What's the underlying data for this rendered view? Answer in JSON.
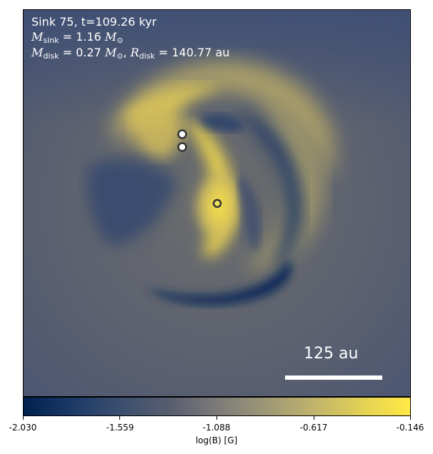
{
  "panel": {
    "title": "Sink 75, t=109.26 kyr",
    "mass_sink_label": "M",
    "mass_sink_sub": "sink",
    "mass_sink_value": " = 1.16 ",
    "mass_unit": "M",
    "sun_symbol": "⊙",
    "mass_disk_label": "M",
    "mass_disk_sub": "disk",
    "mass_disk_value": " = 0.27 ",
    "separator": ", ",
    "radius_label": "R",
    "radius_sub": "disk",
    "radius_value": " = 140.77 au"
  },
  "scalebar": {
    "label": "125 au"
  },
  "colorbar": {
    "colormap": "cividis",
    "ticks": [
      "-2.030",
      "-1.559",
      "-1.088",
      "-0.617",
      "-0.146"
    ],
    "label": "log(B) [G]"
  },
  "colors": {
    "low": "#00204d",
    "mid": "#7c7b78",
    "high": "#ffe945",
    "sink_fill": "#ffffff",
    "sink_edge": "#333333"
  }
}
